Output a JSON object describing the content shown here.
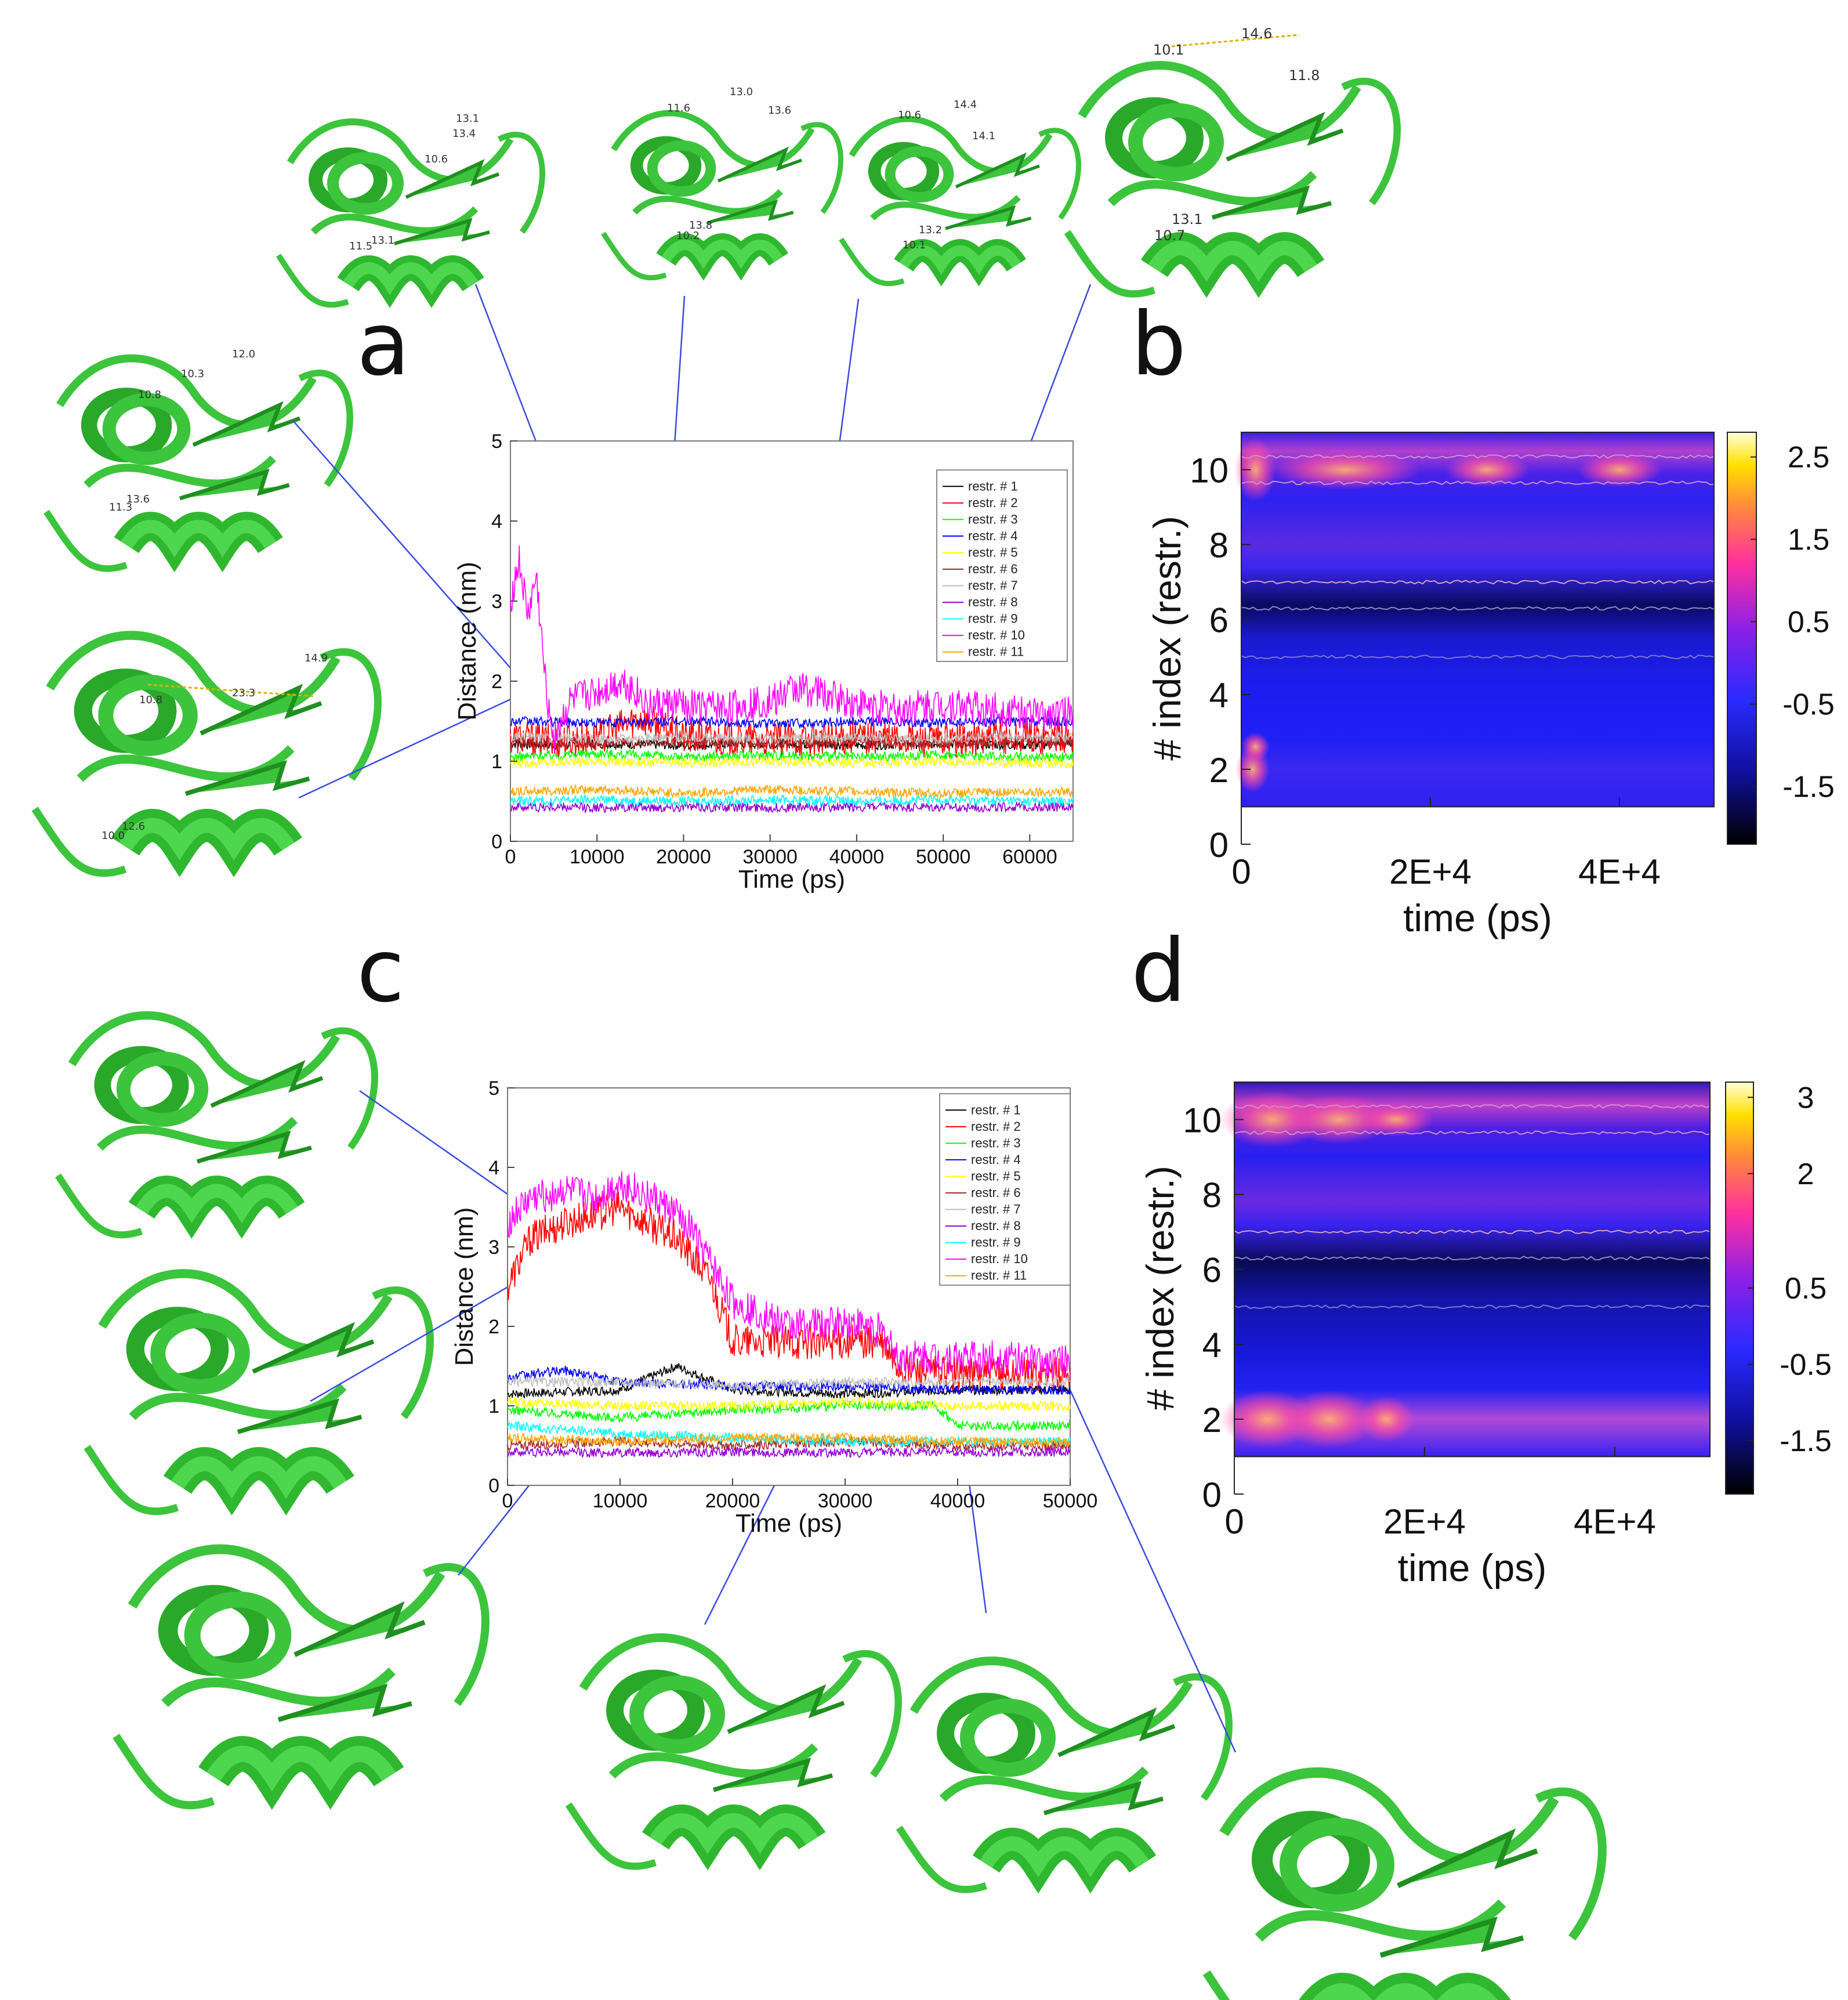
{
  "panels": {
    "a": "a",
    "b": "b",
    "c": "c",
    "d": "d"
  },
  "colors": {
    "protein": "#3cc43c",
    "protein_dark": "#1f8f1f",
    "callout_line": "#3a4be0",
    "distance_line": "#e0b000"
  },
  "icons": [
    "protein-cartoon-icon"
  ],
  "distance_labels": {
    "a_left_top": [
      "12.0",
      "10.3",
      "10.8",
      "13.6",
      "11.3"
    ],
    "a_left_bottom": [
      "10.8",
      "23.3",
      "14.9",
      "12.6",
      "10.0"
    ],
    "a_top_1": [
      "13.1",
      "13.4",
      "10.6",
      "11.5",
      "13.1"
    ],
    "a_top_2": [
      "13.0",
      "11.6",
      "13.6",
      "10.2",
      "13.8"
    ],
    "a_top_3": [
      "14.4",
      "10.6",
      "14.1",
      "10.1",
      "13.2"
    ],
    "a_top_4": [
      "14.6",
      "10.1",
      "11.8",
      "13.1",
      "10.7"
    ]
  },
  "chart_data": [
    {
      "id": "a",
      "type": "line",
      "xlabel": "Time (ps)",
      "ylabel": "Distance (nm)",
      "xlim": [
        0,
        65000
      ],
      "ylim": [
        0,
        5
      ],
      "xticks": [
        0,
        10000,
        20000,
        30000,
        40000,
        50000,
        60000
      ],
      "yticks": [
        0,
        1,
        2,
        3,
        4,
        5
      ],
      "legend": "top-right",
      "series": [
        {
          "name": "restr. # 1",
          "color": "#000000",
          "x": [
            0,
            5000,
            10000,
            20000,
            30000,
            40000,
            50000,
            60000,
            65000
          ],
          "values": [
            1.22,
            1.2,
            1.22,
            1.2,
            1.22,
            1.2,
            1.22,
            1.2,
            1.22
          ]
        },
        {
          "name": "restr. # 2",
          "color": "#ff0000",
          "x": [
            0,
            5000,
            10000,
            15000,
            20000,
            30000,
            40000,
            50000,
            60000,
            65000
          ],
          "values": [
            1.3,
            1.25,
            1.3,
            1.55,
            1.3,
            1.25,
            1.3,
            1.25,
            1.3,
            1.3
          ]
        },
        {
          "name": "restr. # 3",
          "color": "#00ff00",
          "x": [
            0,
            10000,
            20000,
            30000,
            40000,
            50000,
            60000,
            65000
          ],
          "values": [
            1.05,
            1.1,
            1.05,
            1.08,
            1.05,
            1.08,
            1.05,
            1.05
          ]
        },
        {
          "name": "restr. # 4",
          "color": "#0000ff",
          "x": [
            0,
            10000,
            20000,
            30000,
            40000,
            50000,
            60000,
            65000
          ],
          "values": [
            1.5,
            1.48,
            1.5,
            1.47,
            1.5,
            1.48,
            1.5,
            1.5
          ]
        },
        {
          "name": "restr. # 5",
          "color": "#ffff00",
          "x": [
            0,
            10000,
            20000,
            30000,
            40000,
            50000,
            60000,
            65000
          ],
          "values": [
            0.98,
            1.0,
            0.98,
            1.0,
            0.98,
            1.0,
            0.98,
            0.98
          ]
        },
        {
          "name": "restr. # 6",
          "color": "#a52a2a",
          "x": [
            0,
            10000,
            20000,
            30000,
            40000,
            50000,
            60000,
            65000
          ],
          "values": [
            1.25,
            1.22,
            1.25,
            1.22,
            1.25,
            1.22,
            1.25,
            1.25
          ]
        },
        {
          "name": "restr. # 7",
          "color": "#bebebe",
          "x": [
            0,
            10000,
            20000,
            30000,
            40000,
            50000,
            60000,
            65000
          ],
          "values": [
            1.3,
            1.28,
            1.3,
            1.28,
            1.3,
            1.28,
            1.3,
            1.3
          ]
        },
        {
          "name": "restr. # 8",
          "color": "#9400d3",
          "x": [
            0,
            10000,
            20000,
            30000,
            40000,
            50000,
            60000,
            65000
          ],
          "values": [
            0.43,
            0.42,
            0.43,
            0.42,
            0.43,
            0.42,
            0.43,
            0.43
          ]
        },
        {
          "name": "restr. # 9",
          "color": "#00ffff",
          "x": [
            0,
            10000,
            20000,
            30000,
            40000,
            50000,
            60000,
            65000
          ],
          "values": [
            0.5,
            0.52,
            0.5,
            0.52,
            0.5,
            0.52,
            0.5,
            0.5
          ]
        },
        {
          "name": "restr. # 10",
          "color": "#ff00ff",
          "x": [
            0,
            1000,
            2000,
            3000,
            4000,
            5000,
            7000,
            10000,
            13000,
            16000,
            20000,
            25000,
            30000,
            33000,
            36000,
            40000,
            45000,
            50000,
            55000,
            60000,
            65000
          ],
          "values": [
            3.0,
            3.5,
            2.8,
            3.3,
            2.0,
            1.3,
            1.75,
            1.85,
            2.0,
            1.7,
            1.7,
            1.65,
            1.75,
            1.9,
            1.85,
            1.7,
            1.65,
            1.7,
            1.65,
            1.6,
            1.6
          ]
        },
        {
          "name": "restr. # 11",
          "color": "#ffa500",
          "x": [
            0,
            10000,
            20000,
            30000,
            40000,
            50000,
            60000,
            65000
          ],
          "values": [
            0.62,
            0.65,
            0.6,
            0.65,
            0.62,
            0.6,
            0.62,
            0.62
          ]
        }
      ]
    },
    {
      "id": "b",
      "type": "heatmap",
      "xlabel": "time (ps)",
      "ylabel": "# index (restr.)",
      "xticks": [
        "0",
        "2E+4",
        "4E+4"
      ],
      "xtick_values": [
        0,
        20000,
        40000
      ],
      "yticks": [
        "0",
        "2",
        "4",
        "6",
        "8",
        "10"
      ],
      "xlim": [
        0,
        50000
      ],
      "ylim": [
        0,
        11
      ],
      "colorbar_ticks": [
        "2.5",
        "1.5",
        "0.5",
        "-0.5",
        "-1.5"
      ],
      "colorbar_tick_values": [
        2.5,
        1.5,
        0.5,
        -0.5,
        -1.5
      ],
      "colorbar_range": [
        -2.2,
        2.8
      ]
    },
    {
      "id": "c",
      "type": "line",
      "xlabel": "Time (ps)",
      "ylabel": "Distance (nm)",
      "xlim": [
        0,
        50000
      ],
      "ylim": [
        0,
        5
      ],
      "xticks": [
        0,
        10000,
        20000,
        30000,
        40000,
        50000
      ],
      "yticks": [
        0,
        1,
        2,
        3,
        4,
        5
      ],
      "legend": "top-right",
      "series": [
        {
          "name": "restr. # 1",
          "color": "#000000",
          "x": [
            0,
            10000,
            15000,
            20000,
            30000,
            40000,
            50000
          ],
          "values": [
            1.15,
            1.2,
            1.5,
            1.2,
            1.15,
            1.2,
            1.2
          ]
        },
        {
          "name": "restr. # 2",
          "color": "#ff0000",
          "x": [
            0,
            2000,
            5000,
            10000,
            15000,
            18000,
            20000,
            25000,
            30000,
            33000,
            35000,
            40000,
            45000,
            50000
          ],
          "values": [
            2.5,
            3.1,
            3.3,
            3.5,
            3.1,
            2.6,
            1.8,
            1.8,
            1.8,
            1.8,
            1.45,
            1.4,
            1.4,
            1.4
          ]
        },
        {
          "name": "restr. # 3",
          "color": "#00ff00",
          "x": [
            0,
            10000,
            20000,
            30000,
            38000,
            40000,
            50000
          ],
          "values": [
            0.95,
            0.85,
            0.95,
            1.0,
            1.0,
            0.75,
            0.75
          ]
        },
        {
          "name": "restr. # 4",
          "color": "#0000ff",
          "x": [
            0,
            5000,
            10000,
            20000,
            30000,
            40000,
            50000
          ],
          "values": [
            1.35,
            1.45,
            1.3,
            1.25,
            1.25,
            1.2,
            1.2
          ]
        },
        {
          "name": "restr. # 5",
          "color": "#ffff00",
          "x": [
            0,
            10000,
            20000,
            30000,
            40000,
            50000
          ],
          "values": [
            1.05,
            1.0,
            1.0,
            1.05,
            1.0,
            1.0
          ]
        },
        {
          "name": "restr. # 6",
          "color": "#a52a2a",
          "x": [
            0,
            10000,
            20000,
            30000,
            40000,
            50000
          ],
          "values": [
            0.5,
            0.55,
            0.5,
            0.55,
            0.5,
            0.5
          ]
        },
        {
          "name": "restr. # 7",
          "color": "#bebebe",
          "x": [
            0,
            10000,
            20000,
            30000,
            40000,
            50000
          ],
          "values": [
            1.3,
            1.3,
            1.25,
            1.3,
            1.3,
            1.3
          ]
        },
        {
          "name": "restr. # 8",
          "color": "#9400d3",
          "x": [
            0,
            10000,
            20000,
            30000,
            40000,
            50000
          ],
          "values": [
            0.42,
            0.41,
            0.42,
            0.41,
            0.42,
            0.42
          ]
        },
        {
          "name": "restr. # 9",
          "color": "#00ffff",
          "x": [
            0,
            10000,
            20000,
            30000,
            40000,
            50000
          ],
          "values": [
            0.75,
            0.65,
            0.6,
            0.55,
            0.55,
            0.55
          ]
        },
        {
          "name": "restr. # 10",
          "color": "#ff00ff",
          "x": [
            0,
            2000,
            5000,
            8000,
            10000,
            13000,
            16000,
            18000,
            20000,
            25000,
            30000,
            33000,
            35000,
            40000,
            45000,
            50000
          ],
          "values": [
            3.3,
            3.6,
            3.7,
            3.6,
            3.8,
            3.6,
            3.3,
            2.8,
            2.3,
            2.0,
            2.05,
            1.95,
            1.6,
            1.6,
            1.6,
            1.55
          ]
        },
        {
          "name": "restr. # 11",
          "color": "#ffa500",
          "x": [
            0,
            10000,
            20000,
            30000,
            40000,
            50000
          ],
          "values": [
            0.6,
            0.55,
            0.6,
            0.6,
            0.55,
            0.55
          ]
        }
      ]
    },
    {
      "id": "d",
      "type": "heatmap",
      "xlabel": "time (ps)",
      "ylabel": "# index (restr.)",
      "xticks": [
        "0",
        "2E+4",
        "4E+4"
      ],
      "xtick_values": [
        0,
        20000,
        40000
      ],
      "yticks": [
        "0",
        "2",
        "4",
        "6",
        "8",
        "10"
      ],
      "xlim": [
        0,
        50000
      ],
      "ylim": [
        0,
        11
      ],
      "colorbar_ticks": [
        "3",
        "2",
        "0.5",
        "-0.5",
        "-1.5"
      ],
      "colorbar_tick_values": [
        3,
        2,
        0.5,
        -0.5,
        -1.5
      ],
      "colorbar_range": [
        -2.2,
        3.2
      ]
    }
  ]
}
